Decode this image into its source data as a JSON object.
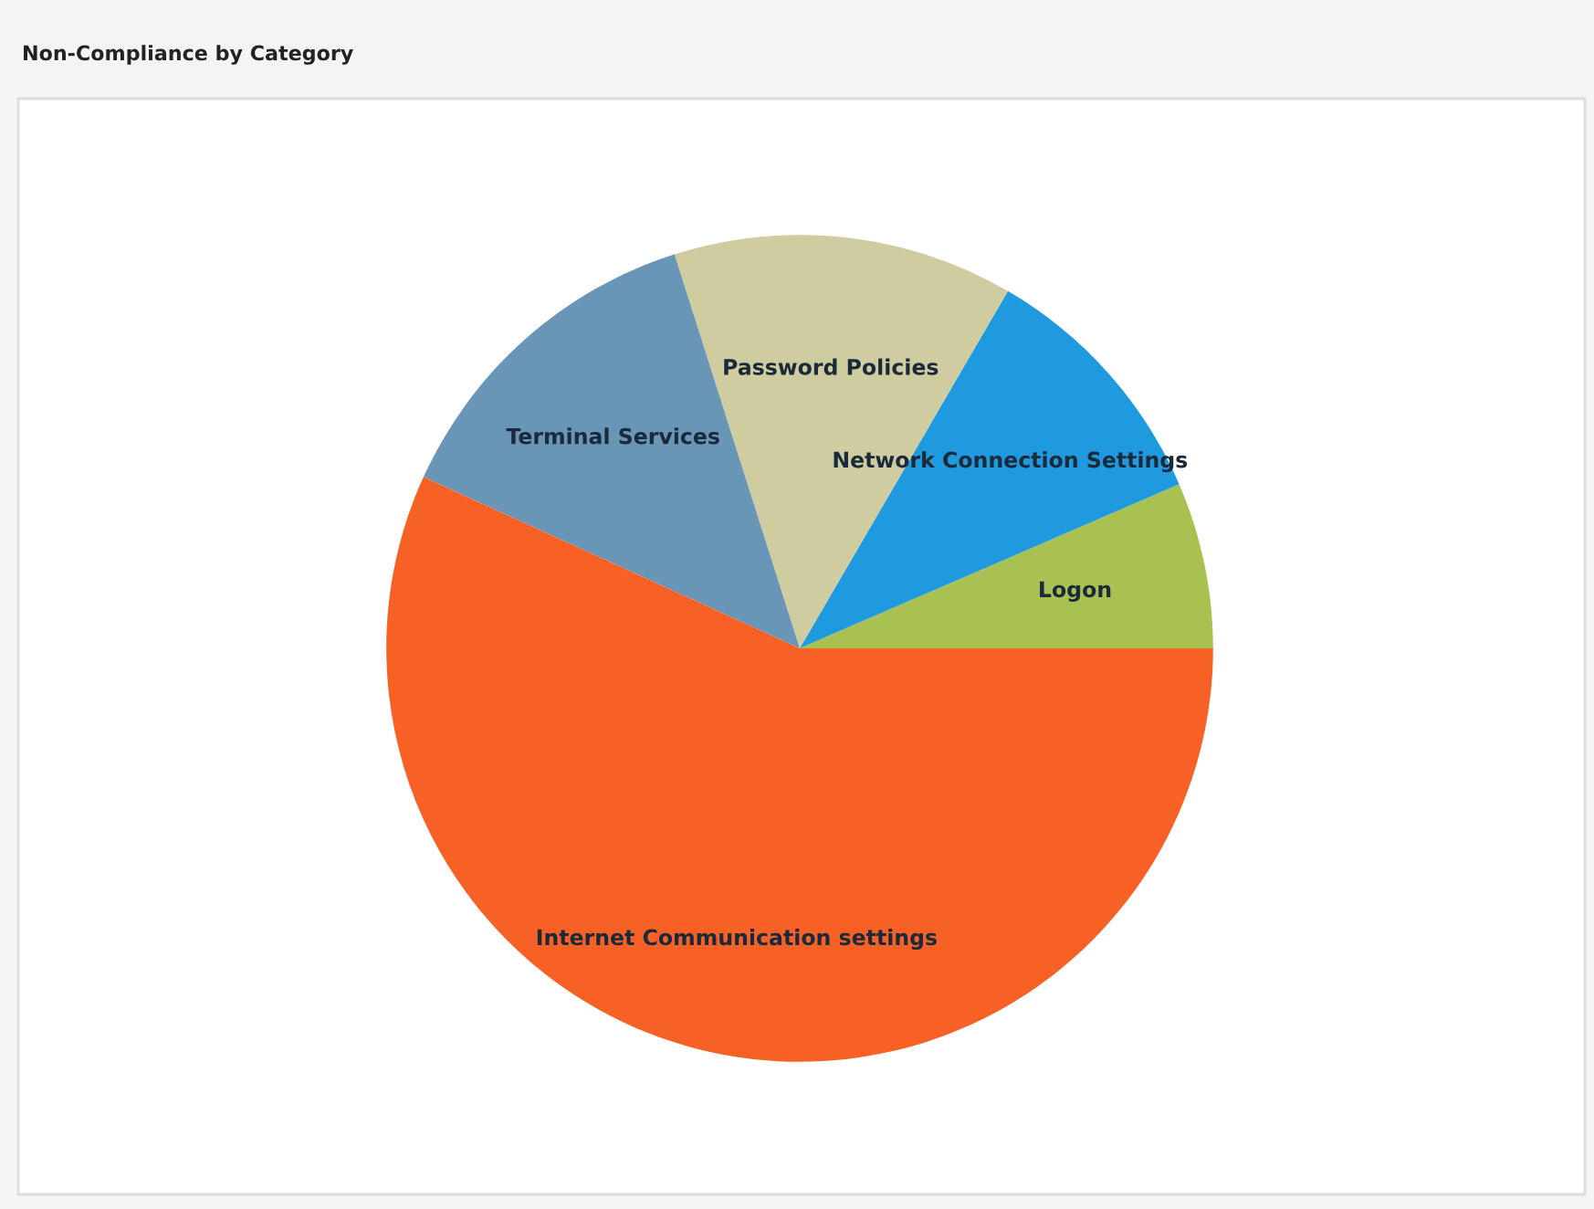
{
  "chart_data": {
    "type": "pie",
    "title": "Non-Compliance by Category",
    "categories": [
      "Logon",
      "Network Connection Settings",
      "Password Policies",
      "Terminal Services",
      "Internet Communication settings"
    ],
    "values": [
      6.5,
      10.1,
      13.3,
      13.3,
      56.8
    ],
    "colors": [
      "#a9c150",
      "#1f9ade",
      "#cfcca0",
      "#6996b6",
      "#f76125"
    ]
  }
}
